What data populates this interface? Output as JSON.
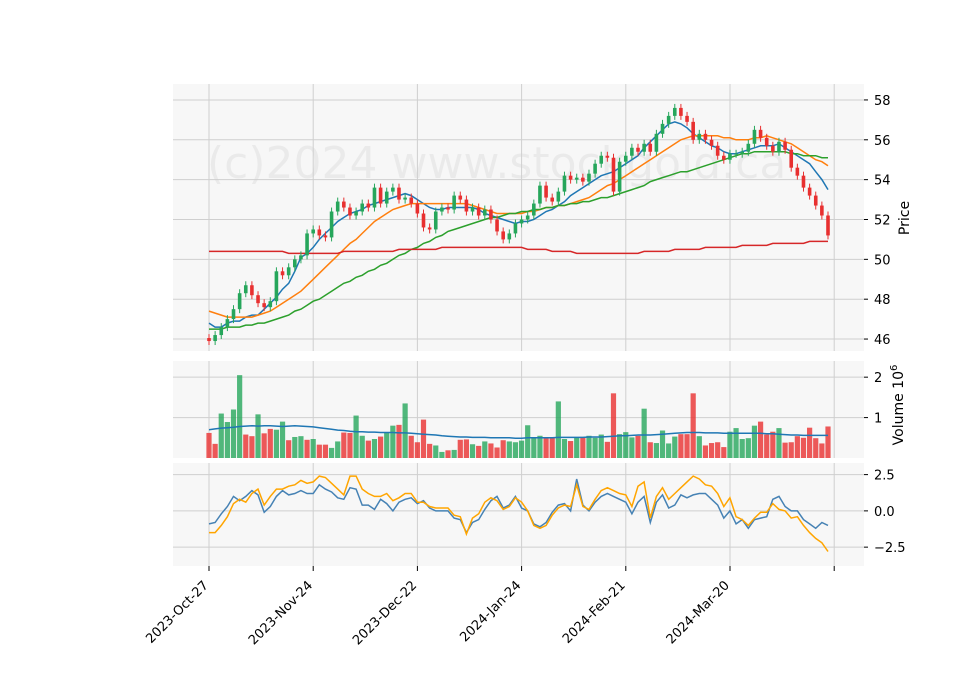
{
  "chart_data": {
    "type": "candlestick",
    "watermark": "(c)2024 www.stockgold.ca",
    "x_tick_labels": [
      "2023-Oct-27",
      "2023-Nov-24",
      "2023-Dec-22",
      "2024-Jan-24",
      "2024-Feb-21",
      "2024-Mar-20"
    ],
    "colors": {
      "up": "#26a65b",
      "down": "#e83030",
      "ma_fast": "#1f77b4",
      "ma_mid": "#ff7f0e",
      "ma_slow": "#2ca02c",
      "ma_long": "#d62728",
      "vol_ma": "#1f77b4",
      "osc_a": "#4682b4",
      "osc_b": "#ffa500"
    },
    "price_panel": {
      "ylabel": "Price",
      "ylim": [
        45.4,
        58.8
      ],
      "yticks": [
        46,
        48,
        50,
        52,
        54,
        56,
        58
      ],
      "close": [
        45.9,
        46.2,
        46.6,
        47.0,
        47.5,
        48.3,
        48.7,
        48.2,
        47.8,
        47.6,
        47.9,
        49.4,
        49.2,
        49.6,
        50.0,
        50.2,
        51.3,
        51.5,
        51.2,
        51.1,
        52.4,
        52.9,
        52.6,
        52.2,
        52.4,
        52.8,
        52.6,
        53.6,
        52.8,
        53.4,
        53.6,
        53.0,
        53.1,
        52.8,
        52.3,
        51.6,
        51.5,
        52.4,
        52.6,
        52.5,
        53.2,
        53.0,
        52.4,
        52.6,
        52.2,
        52.5,
        52.0,
        51.4,
        51.0,
        51.3,
        51.8,
        52.0,
        52.2,
        52.8,
        53.7,
        53.1,
        52.9,
        53.4,
        54.2,
        54.0,
        54.1,
        53.9,
        54.3,
        54.8,
        55.2,
        55.1,
        53.4,
        54.9,
        55.2,
        55.6,
        55.4,
        55.8,
        55.4,
        56.3,
        56.8,
        57.2,
        57.6,
        57.2,
        56.9,
        56.0,
        56.3,
        56.0,
        55.7,
        55.2,
        55.0,
        55.3,
        55.3,
        55.4,
        55.8,
        56.5,
        56.1,
        55.7,
        55.4,
        55.9,
        55.5,
        54.6,
        54.2,
        53.6,
        53.2,
        52.7,
        52.2,
        51.2
      ],
      "moving_averages": [
        {
          "color": "#1f77b4",
          "values": [
            46.8,
            46.6,
            46.6,
            46.8,
            46.9,
            46.9,
            47.1,
            47.2,
            47.2,
            47.5,
            47.8,
            48.1,
            48.5,
            48.8,
            49.4,
            50.1,
            50.3,
            50.6,
            51.0,
            51.3,
            51.6,
            51.9,
            52.1,
            52.3,
            52.4,
            52.5,
            52.7,
            52.8,
            52.9,
            53.0,
            53.1,
            53.2,
            53.3,
            53.2,
            53.0,
            52.8,
            52.6,
            52.5,
            52.5,
            52.6,
            52.6,
            52.6,
            52.6,
            52.6,
            52.5,
            52.3,
            52.2,
            52.1,
            52.0,
            51.9,
            51.8,
            51.9,
            51.9,
            52.0,
            52.2,
            52.4,
            52.5,
            52.7,
            52.9,
            53.2,
            53.4,
            53.6,
            53.8,
            54.0,
            54.2,
            54.3,
            54.4,
            54.6,
            54.8,
            55.0,
            55.2,
            55.6,
            55.9,
            56.2,
            56.5,
            56.8,
            56.9,
            56.8,
            56.6,
            56.3,
            56.1,
            55.9,
            55.7,
            55.6,
            55.4,
            55.3,
            55.3,
            55.4,
            55.5,
            55.6,
            55.7,
            55.7,
            55.7,
            55.8,
            55.6,
            55.4,
            55.2,
            55.0,
            54.8,
            54.4,
            54.0,
            53.5
          ]
        },
        {
          "color": "#ff7f0e",
          "values": [
            47.4,
            47.3,
            47.2,
            47.1,
            47.1,
            47.1,
            47.1,
            47.1,
            47.2,
            47.3,
            47.4,
            47.6,
            47.8,
            48.0,
            48.2,
            48.4,
            48.7,
            49.0,
            49.3,
            49.6,
            49.9,
            50.2,
            50.5,
            50.8,
            51.0,
            51.3,
            51.6,
            51.9,
            52.1,
            52.3,
            52.5,
            52.6,
            52.7,
            52.8,
            52.8,
            52.8,
            52.8,
            52.8,
            52.8,
            52.8,
            52.8,
            52.8,
            52.8,
            52.7,
            52.6,
            52.5,
            52.4,
            52.3,
            52.3,
            52.3,
            52.3,
            52.3,
            52.4,
            52.4,
            52.5,
            52.6,
            52.6,
            52.7,
            52.7,
            52.8,
            52.9,
            53.0,
            53.1,
            53.3,
            53.5,
            53.7,
            53.8,
            54.0,
            54.2,
            54.4,
            54.6,
            54.8,
            55.0,
            55.2,
            55.4,
            55.6,
            55.8,
            56.0,
            56.1,
            56.2,
            56.2,
            56.2,
            56.2,
            56.2,
            56.1,
            56.1,
            56.0,
            56.0,
            56.0,
            56.1,
            56.1,
            56.2,
            56.1,
            56.0,
            55.9,
            55.8,
            55.6,
            55.4,
            55.2,
            55.0,
            54.9,
            54.7
          ]
        },
        {
          "color": "#2ca02c",
          "values": [
            46.5,
            46.5,
            46.5,
            46.6,
            46.6,
            46.6,
            46.7,
            46.7,
            46.8,
            46.8,
            46.9,
            47.0,
            47.1,
            47.2,
            47.4,
            47.5,
            47.7,
            47.9,
            48.0,
            48.2,
            48.4,
            48.6,
            48.8,
            48.9,
            49.1,
            49.2,
            49.4,
            49.5,
            49.7,
            49.8,
            50.0,
            50.2,
            50.3,
            50.5,
            50.6,
            50.8,
            50.9,
            51.1,
            51.2,
            51.4,
            51.5,
            51.6,
            51.7,
            51.8,
            51.9,
            52.0,
            52.1,
            52.1,
            52.2,
            52.3,
            52.3,
            52.4,
            52.4,
            52.5,
            52.5,
            52.6,
            52.6,
            52.7,
            52.7,
            52.8,
            52.8,
            52.9,
            52.9,
            53.0,
            53.1,
            53.1,
            53.2,
            53.3,
            53.4,
            53.5,
            53.6,
            53.7,
            53.9,
            54.0,
            54.1,
            54.2,
            54.3,
            54.4,
            54.4,
            54.5,
            54.6,
            54.7,
            54.8,
            54.9,
            55.0,
            55.1,
            55.2,
            55.3,
            55.3,
            55.4,
            55.4,
            55.4,
            55.4,
            55.4,
            55.4,
            55.3,
            55.3,
            55.2,
            55.2,
            55.2,
            55.1,
            55.1
          ]
        },
        {
          "color": "#d62728",
          "values": [
            50.4,
            50.4,
            50.4,
            50.4,
            50.4,
            50.4,
            50.4,
            50.4,
            50.4,
            50.4,
            50.4,
            50.4,
            50.4,
            50.3,
            50.3,
            50.3,
            50.3,
            50.3,
            50.3,
            50.3,
            50.3,
            50.3,
            50.4,
            50.4,
            50.4,
            50.4,
            50.4,
            50.4,
            50.4,
            50.4,
            50.4,
            50.5,
            50.5,
            50.5,
            50.5,
            50.5,
            50.5,
            50.5,
            50.6,
            50.6,
            50.6,
            50.6,
            50.6,
            50.6,
            50.6,
            50.6,
            50.6,
            50.6,
            50.6,
            50.6,
            50.6,
            50.6,
            50.5,
            50.5,
            50.5,
            50.5,
            50.4,
            50.4,
            50.4,
            50.4,
            50.3,
            50.3,
            50.3,
            50.3,
            50.3,
            50.3,
            50.3,
            50.3,
            50.3,
            50.3,
            50.3,
            50.4,
            50.4,
            50.4,
            50.4,
            50.4,
            50.5,
            50.5,
            50.5,
            50.5,
            50.5,
            50.6,
            50.6,
            50.6,
            50.6,
            50.6,
            50.6,
            50.7,
            50.7,
            50.7,
            50.7,
            50.7,
            50.8,
            50.8,
            50.8,
            50.8,
            50.8,
            50.8,
            50.9,
            50.9,
            50.9,
            50.9
          ]
        }
      ]
    },
    "volume_panel": {
      "ylabel": "Volume  10^6",
      "ylim": [
        0,
        2.4
      ],
      "yticks": [
        1,
        2
      ],
      "values": [
        0.62,
        0.35,
        1.1,
        0.89,
        1.2,
        2.05,
        0.58,
        0.54,
        1.08,
        0.61,
        0.72,
        0.7,
        0.9,
        0.44,
        0.52,
        0.54,
        0.45,
        0.47,
        0.33,
        0.33,
        0.25,
        0.41,
        0.63,
        0.62,
        1.05,
        0.55,
        0.43,
        0.47,
        0.53,
        0.62,
        0.8,
        0.82,
        1.35,
        0.55,
        0.39,
        0.95,
        0.35,
        0.31,
        0.15,
        0.19,
        0.2,
        0.45,
        0.46,
        0.34,
        0.3,
        0.41,
        0.36,
        0.26,
        0.44,
        0.41,
        0.39,
        0.43,
        0.81,
        0.5,
        0.55,
        0.5,
        0.5,
        1.4,
        0.47,
        0.42,
        0.5,
        0.52,
        0.55,
        0.5,
        0.58,
        0.4,
        1.6,
        0.59,
        0.64,
        0.51,
        0.55,
        1.22,
        0.39,
        0.37,
        0.68,
        0.36,
        0.53,
        0.59,
        0.59,
        1.6,
        0.54,
        0.31,
        0.37,
        0.39,
        0.27,
        0.65,
        0.74,
        0.47,
        0.49,
        0.8,
        0.9,
        0.58,
        0.65,
        0.74,
        0.38,
        0.39,
        0.54,
        0.5,
        0.75,
        0.49,
        0.36,
        0.78
      ],
      "up_down": [
        "d",
        "d",
        "u",
        "u",
        "u",
        "u",
        "d",
        "d",
        "u",
        "d",
        "d",
        "u",
        "u",
        "d",
        "u",
        "u",
        "d",
        "u",
        "d",
        "d",
        "u",
        "u",
        "d",
        "d",
        "u",
        "u",
        "d",
        "u",
        "d",
        "u",
        "u",
        "d",
        "u",
        "d",
        "d",
        "d",
        "d",
        "u",
        "u",
        "d",
        "u",
        "d",
        "d",
        "u",
        "d",
        "u",
        "d",
        "d",
        "d",
        "u",
        "u",
        "u",
        "u",
        "u",
        "u",
        "d",
        "d",
        "u",
        "u",
        "d",
        "u",
        "d",
        "u",
        "u",
        "u",
        "d",
        "d",
        "u",
        "u",
        "u",
        "d",
        "u",
        "d",
        "u",
        "u",
        "u",
        "u",
        "d",
        "d",
        "d",
        "u",
        "d",
        "d",
        "d",
        "d",
        "u",
        "u",
        "u",
        "u",
        "u",
        "d",
        "d",
        "d",
        "u",
        "d",
        "d",
        "d",
        "d",
        "d",
        "d",
        "d",
        "d"
      ],
      "volume_ma": [
        0.7,
        0.72,
        0.74,
        0.75,
        0.76,
        0.78,
        0.79,
        0.8,
        0.79,
        0.8,
        0.8,
        0.79,
        0.78,
        0.79,
        0.8,
        0.79,
        0.78,
        0.77,
        0.75,
        0.73,
        0.71,
        0.69,
        0.68,
        0.66,
        0.65,
        0.65,
        0.64,
        0.64,
        0.63,
        0.63,
        0.63,
        0.62,
        0.62,
        0.61,
        0.6,
        0.59,
        0.58,
        0.57,
        0.55,
        0.54,
        0.53,
        0.52,
        0.52,
        0.51,
        0.51,
        0.51,
        0.5,
        0.5,
        0.5,
        0.5,
        0.49,
        0.49,
        0.5,
        0.5,
        0.5,
        0.5,
        0.5,
        0.51,
        0.51,
        0.51,
        0.51,
        0.51,
        0.52,
        0.52,
        0.52,
        0.53,
        0.54,
        0.55,
        0.55,
        0.56,
        0.57,
        0.57,
        0.57,
        0.58,
        0.59,
        0.6,
        0.61,
        0.62,
        0.63,
        0.63,
        0.63,
        0.62,
        0.62,
        0.62,
        0.61,
        0.61,
        0.61,
        0.61,
        0.61,
        0.61,
        0.61,
        0.6,
        0.6,
        0.59,
        0.58,
        0.57,
        0.57,
        0.56,
        0.56,
        0.56,
        0.56,
        0.56
      ]
    },
    "oscillator_panel": {
      "ylim": [
        -3.8,
        3.3
      ],
      "yticks": [
        2.5,
        0.0,
        -2.5
      ],
      "ytick_labels": [
        "2.5",
        "0.0",
        "−2.5"
      ],
      "series": [
        {
          "color": "#4682b4",
          "values": [
            -0.9,
            -0.8,
            -0.2,
            0.3,
            1.0,
            0.7,
            1.0,
            1.4,
            1.1,
            -0.1,
            0.3,
            1.0,
            1.4,
            1.1,
            1.2,
            1.4,
            1.2,
            1.2,
            1.8,
            1.5,
            1.3,
            0.9,
            0.8,
            1.6,
            1.5,
            0.4,
            0.4,
            0.1,
            0.8,
            0.5,
            0.0,
            0.6,
            0.8,
            0.9,
            0.5,
            0.7,
            0.2,
            0.0,
            0.0,
            0.0,
            -0.5,
            -0.6,
            -1.5,
            -0.8,
            -0.6,
            0.1,
            0.7,
            1.0,
            0.2,
            0.4,
            1.0,
            0.2,
            0.0,
            -0.9,
            -1.1,
            -0.8,
            -0.1,
            0.4,
            0.5,
            0.0,
            2.2,
            0.4,
            0.0,
            0.6,
            1.0,
            1.2,
            1.0,
            0.8,
            0.6,
            -0.2,
            0.6,
            1.0,
            -0.8,
            0.6,
            1.1,
            0.2,
            0.4,
            1.1,
            0.9,
            1.1,
            1.2,
            1.2,
            0.8,
            0.4,
            -0.5,
            0.0,
            -0.9,
            -0.6,
            -1.2,
            -0.6,
            -0.5,
            -0.4,
            0.8,
            1.0,
            0.3,
            0.0,
            0.0,
            -0.6,
            -0.9,
            -1.2,
            -0.8,
            -1.0
          ]
        },
        {
          "color": "#ffa500",
          "values": [
            -1.5,
            -1.5,
            -1.0,
            -0.4,
            0.5,
            0.8,
            0.6,
            1.2,
            1.5,
            0.4,
            1.0,
            1.5,
            1.5,
            1.7,
            1.8,
            2.1,
            1.9,
            2.0,
            2.4,
            2.3,
            1.9,
            1.5,
            1.1,
            2.4,
            2.4,
            1.5,
            1.2,
            1.0,
            1.0,
            1.2,
            0.7,
            0.9,
            1.2,
            1.2,
            0.6,
            0.6,
            0.3,
            0.2,
            0.2,
            0.2,
            -0.3,
            -0.4,
            -1.6,
            -0.5,
            -0.2,
            0.6,
            0.9,
            0.7,
            0.1,
            0.3,
            0.9,
            0.6,
            0.0,
            -1.0,
            -1.2,
            -1.0,
            -0.3,
            0.2,
            0.4,
            0.3,
            1.8,
            0.3,
            0.1,
            0.8,
            1.4,
            1.6,
            1.4,
            1.2,
            1.1,
            0.3,
            1.7,
            2.0,
            -0.5,
            1.0,
            1.6,
            0.8,
            1.2,
            1.6,
            2.0,
            2.4,
            2.2,
            1.8,
            1.7,
            1.2,
            0.3,
            0.9,
            -0.4,
            -0.6,
            -1.0,
            -0.5,
            -0.1,
            -0.1,
            0.5,
            0.1,
            0.0,
            -0.5,
            -0.4,
            -1.0,
            -1.5,
            -1.9,
            -2.2,
            -2.8
          ]
        }
      ]
    }
  }
}
